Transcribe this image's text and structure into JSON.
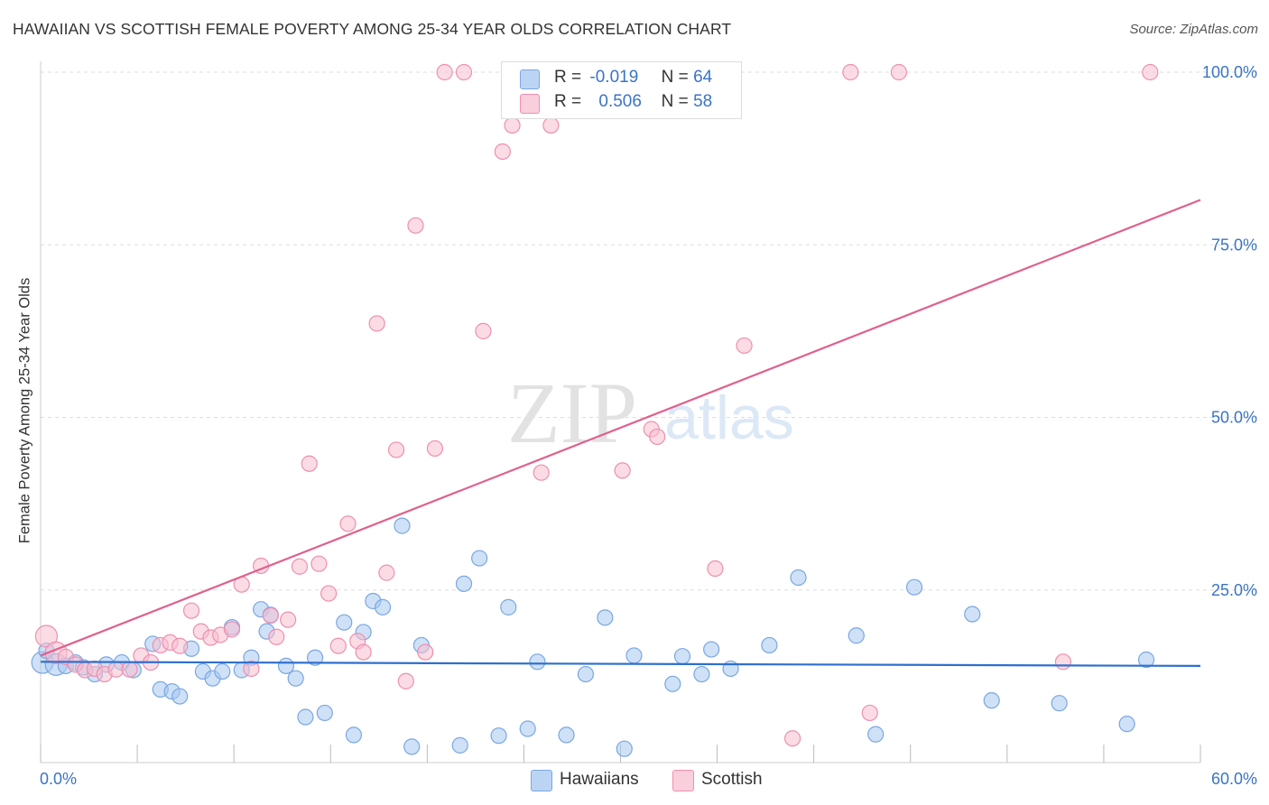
{
  "title": "HAWAIIAN VS SCOTTISH FEMALE POVERTY AMONG 25-34 YEAR OLDS CORRELATION CHART",
  "source": "Source: ZipAtlas.com",
  "watermark": {
    "zip": "ZIP",
    "atlas": "atlas"
  },
  "legend": {
    "r_label": "R =",
    "n_label": "N =",
    "series": [
      {
        "r": "-0.019",
        "n": "64",
        "color": "#a8c8f0",
        "border": "#7aa7e0"
      },
      {
        "r": "0.506",
        "n": "58",
        "color": "#f7bfd0",
        "border": "#ee8faf"
      }
    ]
  },
  "bottom_legend": [
    "Hawaiians",
    "Scottish"
  ],
  "chart_data": {
    "type": "scatter",
    "title": "HAWAIIAN VS SCOTTISH FEMALE POVERTY AMONG 25-34 YEAR OLDS CORRELATION CHART",
    "xlabel": "",
    "ylabel": "Female Poverty Among 25-34 Year Olds",
    "xlim": [
      0,
      60
    ],
    "ylim": [
      0,
      100
    ],
    "x_tick_labels": [
      "0.0%",
      "60.0%"
    ],
    "y_tick_labels": [
      "25.0%",
      "50.0%",
      "75.0%",
      "100.0%"
    ],
    "y_ticks": [
      25,
      50,
      75,
      100
    ],
    "grid": true,
    "legend_position": "top-center",
    "series": [
      {
        "name": "Hawaiians",
        "color": "#7aa7e0",
        "fill": "#a8c8f0",
        "trend": {
          "x": [
            0,
            60
          ],
          "y": [
            14.6,
            14.0
          ],
          "color": "#2e6fcf"
        },
        "points": [
          [
            0.1,
            14.5
          ],
          [
            0.8,
            14.2
          ],
          [
            1.3,
            14.0
          ],
          [
            1.8,
            14.5
          ],
          [
            2.2,
            13.8
          ],
          [
            2.8,
            12.8
          ],
          [
            3.4,
            14.2
          ],
          [
            4.2,
            14.5
          ],
          [
            4.8,
            13.4
          ],
          [
            5.8,
            17.2
          ],
          [
            6.2,
            10.6
          ],
          [
            6.8,
            10.3
          ],
          [
            7.2,
            9.6
          ],
          [
            7.8,
            16.5
          ],
          [
            8.4,
            13.2
          ],
          [
            8.9,
            12.2
          ],
          [
            9.4,
            13.2
          ],
          [
            9.9,
            19.6
          ],
          [
            10.4,
            13.4
          ],
          [
            10.9,
            15.2
          ],
          [
            11.4,
            22.2
          ],
          [
            11.9,
            21.4
          ],
          [
            11.7,
            19.0
          ],
          [
            12.7,
            14.0
          ],
          [
            13.2,
            12.2
          ],
          [
            13.7,
            6.6
          ],
          [
            14.2,
            15.2
          ],
          [
            14.7,
            7.2
          ],
          [
            15.7,
            20.3
          ],
          [
            16.2,
            4.0
          ],
          [
            16.7,
            18.9
          ],
          [
            17.2,
            23.4
          ],
          [
            17.7,
            22.5
          ],
          [
            18.7,
            34.3
          ],
          [
            19.2,
            2.3
          ],
          [
            19.7,
            17.0
          ],
          [
            21.7,
            2.5
          ],
          [
            21.9,
            25.9
          ],
          [
            22.7,
            29.6
          ],
          [
            23.7,
            3.9
          ],
          [
            24.2,
            22.5
          ],
          [
            25.2,
            4.9
          ],
          [
            25.7,
            14.6
          ],
          [
            27.2,
            4.0
          ],
          [
            28.2,
            12.8
          ],
          [
            29.2,
            21.0
          ],
          [
            30.2,
            2.0
          ],
          [
            30.7,
            15.5
          ],
          [
            32.7,
            11.4
          ],
          [
            33.2,
            15.4
          ],
          [
            34.2,
            12.8
          ],
          [
            34.7,
            16.4
          ],
          [
            35.7,
            13.6
          ],
          [
            37.7,
            17.0
          ],
          [
            39.2,
            26.8
          ],
          [
            42.2,
            18.4
          ],
          [
            43.2,
            4.1
          ],
          [
            45.2,
            25.4
          ],
          [
            48.2,
            21.5
          ],
          [
            49.2,
            9.0
          ],
          [
            52.7,
            8.6
          ],
          [
            56.2,
            5.6
          ],
          [
            57.2,
            14.9
          ],
          [
            0.3,
            16.2
          ]
        ]
      },
      {
        "name": "Scottish",
        "color": "#ee8faf",
        "fill": "#f7bfd0",
        "trend": {
          "x": [
            0,
            60
          ],
          "y": [
            15.5,
            81.5
          ],
          "color": "#e0608e"
        },
        "points": [
          [
            0.3,
            18.3
          ],
          [
            0.8,
            15.9
          ],
          [
            1.3,
            15.3
          ],
          [
            1.8,
            14.2
          ],
          [
            2.3,
            13.4
          ],
          [
            2.8,
            13.6
          ],
          [
            3.3,
            12.8
          ],
          [
            3.9,
            13.5
          ],
          [
            4.6,
            13.5
          ],
          [
            5.2,
            15.5
          ],
          [
            5.7,
            14.5
          ],
          [
            6.2,
            17.0
          ],
          [
            6.7,
            17.4
          ],
          [
            7.2,
            16.9
          ],
          [
            7.8,
            22.0
          ],
          [
            8.3,
            19.0
          ],
          [
            8.8,
            18.1
          ],
          [
            9.3,
            18.5
          ],
          [
            9.9,
            19.3
          ],
          [
            10.4,
            25.8
          ],
          [
            10.9,
            13.6
          ],
          [
            11.4,
            28.5
          ],
          [
            11.9,
            21.3
          ],
          [
            12.2,
            18.2
          ],
          [
            12.8,
            20.7
          ],
          [
            13.4,
            28.4
          ],
          [
            13.9,
            43.3
          ],
          [
            14.4,
            28.8
          ],
          [
            14.9,
            24.5
          ],
          [
            15.4,
            16.9
          ],
          [
            15.9,
            34.6
          ],
          [
            16.4,
            17.6
          ],
          [
            16.7,
            16.0
          ],
          [
            17.4,
            63.6
          ],
          [
            17.9,
            27.5
          ],
          [
            18.4,
            45.3
          ],
          [
            18.9,
            11.8
          ],
          [
            19.4,
            77.8
          ],
          [
            19.9,
            16.0
          ],
          [
            20.4,
            45.5
          ],
          [
            20.9,
            100.0
          ],
          [
            21.9,
            100.0
          ],
          [
            22.9,
            62.5
          ],
          [
            23.9,
            88.5
          ],
          [
            24.4,
            92.3
          ],
          [
            25.9,
            42.0
          ],
          [
            26.4,
            92.3
          ],
          [
            30.1,
            42.3
          ],
          [
            31.6,
            48.3
          ],
          [
            31.9,
            47.2
          ],
          [
            34.9,
            28.1
          ],
          [
            36.4,
            60.4
          ],
          [
            38.9,
            3.5
          ],
          [
            41.9,
            100.0
          ],
          [
            42.9,
            7.2
          ],
          [
            44.4,
            100.0
          ],
          [
            52.9,
            14.6
          ],
          [
            57.4,
            100.0
          ]
        ]
      }
    ]
  }
}
